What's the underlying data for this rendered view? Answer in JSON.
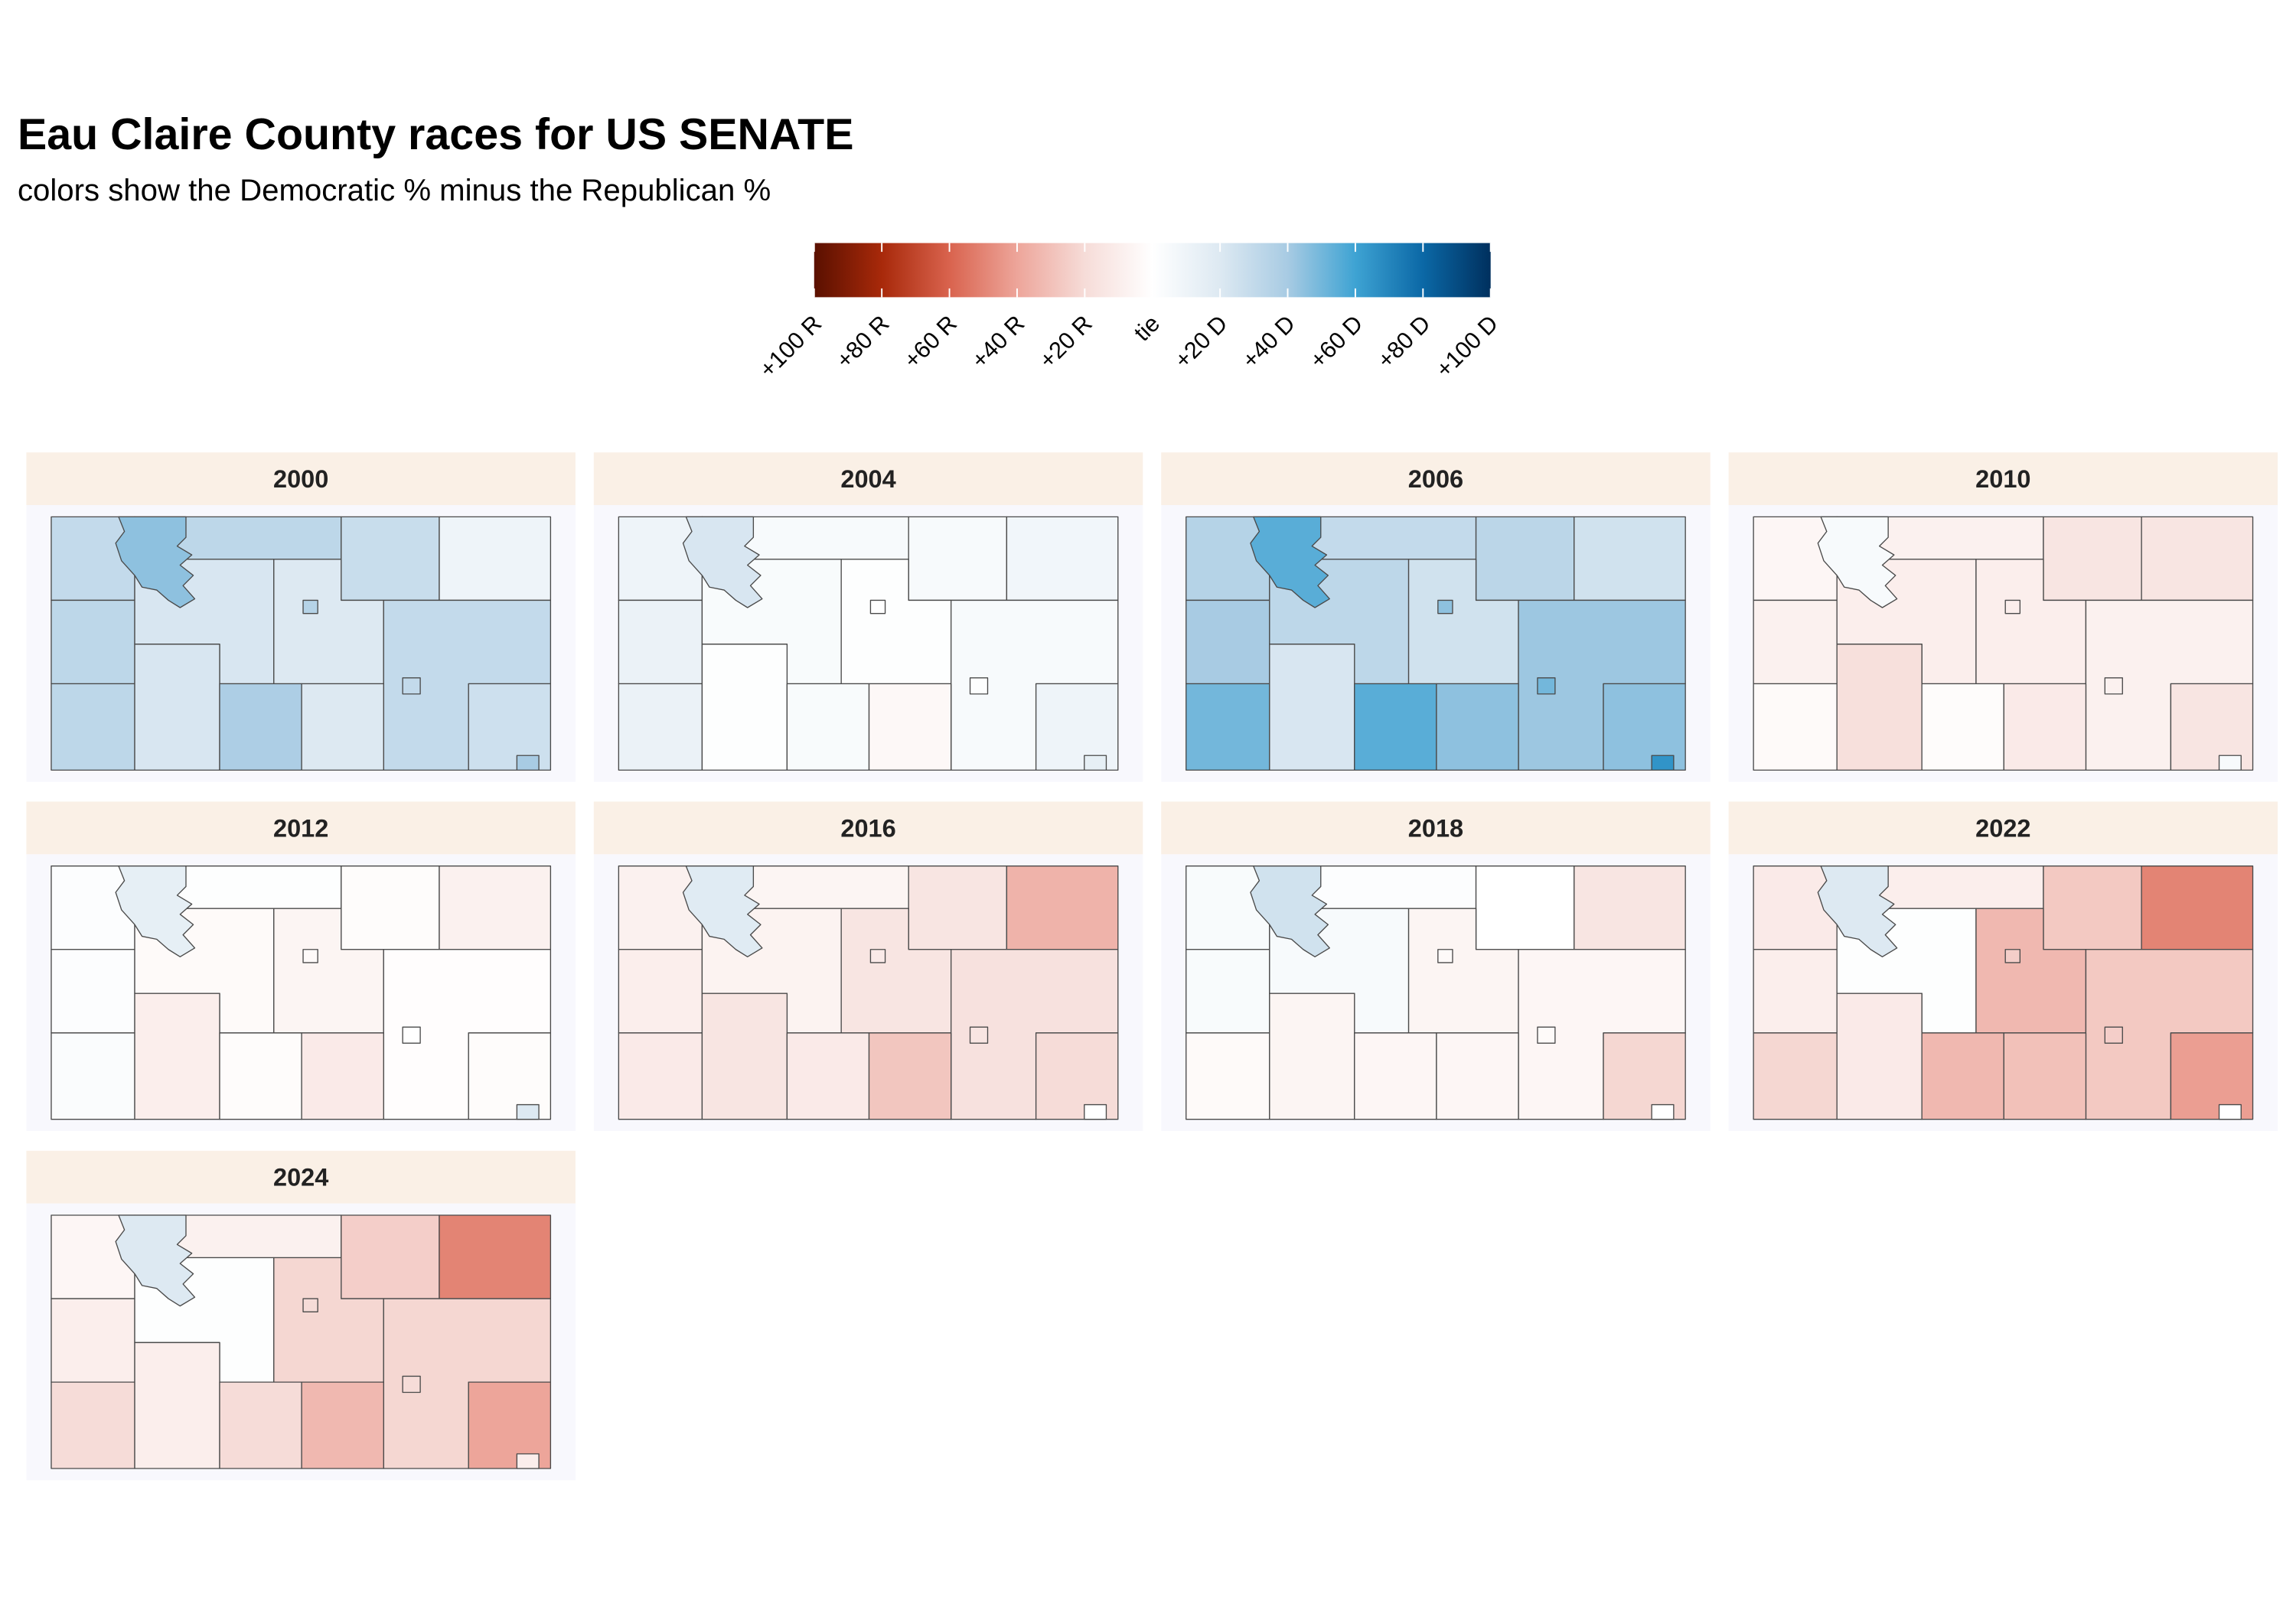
{
  "title": "Eau Claire County races for US SENATE",
  "subtitle": "colors show the Democratic % minus the Republican %",
  "legend": {
    "limits": [
      -100,
      100
    ],
    "ticks": [
      {
        "value": -100,
        "label": "+100 R"
      },
      {
        "value": -80,
        "label": "+80 R"
      },
      {
        "value": -60,
        "label": "+60 R"
      },
      {
        "value": -40,
        "label": "+40 R"
      },
      {
        "value": -20,
        "label": "+20 R"
      },
      {
        "value": 0,
        "label": "tie"
      },
      {
        "value": 20,
        "label": "+20 D"
      },
      {
        "value": 40,
        "label": "+40 D"
      },
      {
        "value": 60,
        "label": "+60 D"
      },
      {
        "value": 80,
        "label": "+80 D"
      },
      {
        "value": 100,
        "label": "+100 D"
      }
    ],
    "colors": [
      "#5a1000",
      "#a8290a",
      "#d9634e",
      "#eda59a",
      "#f6dcd8",
      "#ffffff",
      "#dde9f2",
      "#a8cbe3",
      "#3ea3d3",
      "#0b68a6",
      "#00305e"
    ]
  },
  "panels": [
    {
      "year": "2000",
      "margins": [
        30,
        32,
        28,
        10,
        32,
        22,
        20,
        30,
        32,
        22,
        38,
        20,
        26,
        45,
        40,
        35,
        30
      ]
    },
    {
      "year": "2004",
      "margins": [
        10,
        5,
        5,
        8,
        12,
        4,
        1,
        5,
        12,
        1,
        4,
        -4,
        10,
        22,
        15,
        0,
        1
      ]
    },
    {
      "year": "2006",
      "margins": [
        35,
        30,
        33,
        25,
        40,
        32,
        25,
        42,
        50,
        22,
        55,
        45,
        45,
        55,
        65,
        45,
        50
      ]
    },
    {
      "year": "2010",
      "margins": [
        -5,
        -8,
        -15,
        -15,
        -8,
        -10,
        -10,
        -8,
        -3,
        -18,
        -2,
        -12,
        -15,
        5,
        5,
        -10,
        -8
      ]
    },
    {
      "year": "2012",
      "margins": [
        2,
        1,
        -2,
        -8,
        2,
        -3,
        -6,
        -1,
        3,
        -10,
        -2,
        -12,
        -2,
        15,
        20,
        -3,
        0
      ]
    },
    {
      "year": "2016",
      "margins": [
        -8,
        -6,
        -15,
        -35,
        -10,
        -7,
        -15,
        -17,
        -12,
        -15,
        -12,
        -28,
        -20,
        18,
        0,
        -12,
        -15
      ]
    },
    {
      "year": "2018",
      "margins": [
        4,
        2,
        0,
        -15,
        4,
        5,
        -6,
        -5,
        -3,
        -6,
        -5,
        -5,
        -22,
        25,
        0,
        -3,
        -3
      ]
    },
    {
      "year": "2022",
      "margins": [
        -12,
        -10,
        -27,
        -50,
        -10,
        1,
        -33,
        -27,
        -22,
        -12,
        -33,
        -30,
        -42,
        20,
        0,
        -25,
        -25
      ]
    },
    {
      "year": "2024",
      "margins": [
        -5,
        -8,
        -25,
        -50,
        -10,
        1,
        -22,
        -22,
        -20,
        -10,
        -20,
        -33,
        -40,
        20,
        -10,
        -20,
        -20
      ]
    }
  ]
}
